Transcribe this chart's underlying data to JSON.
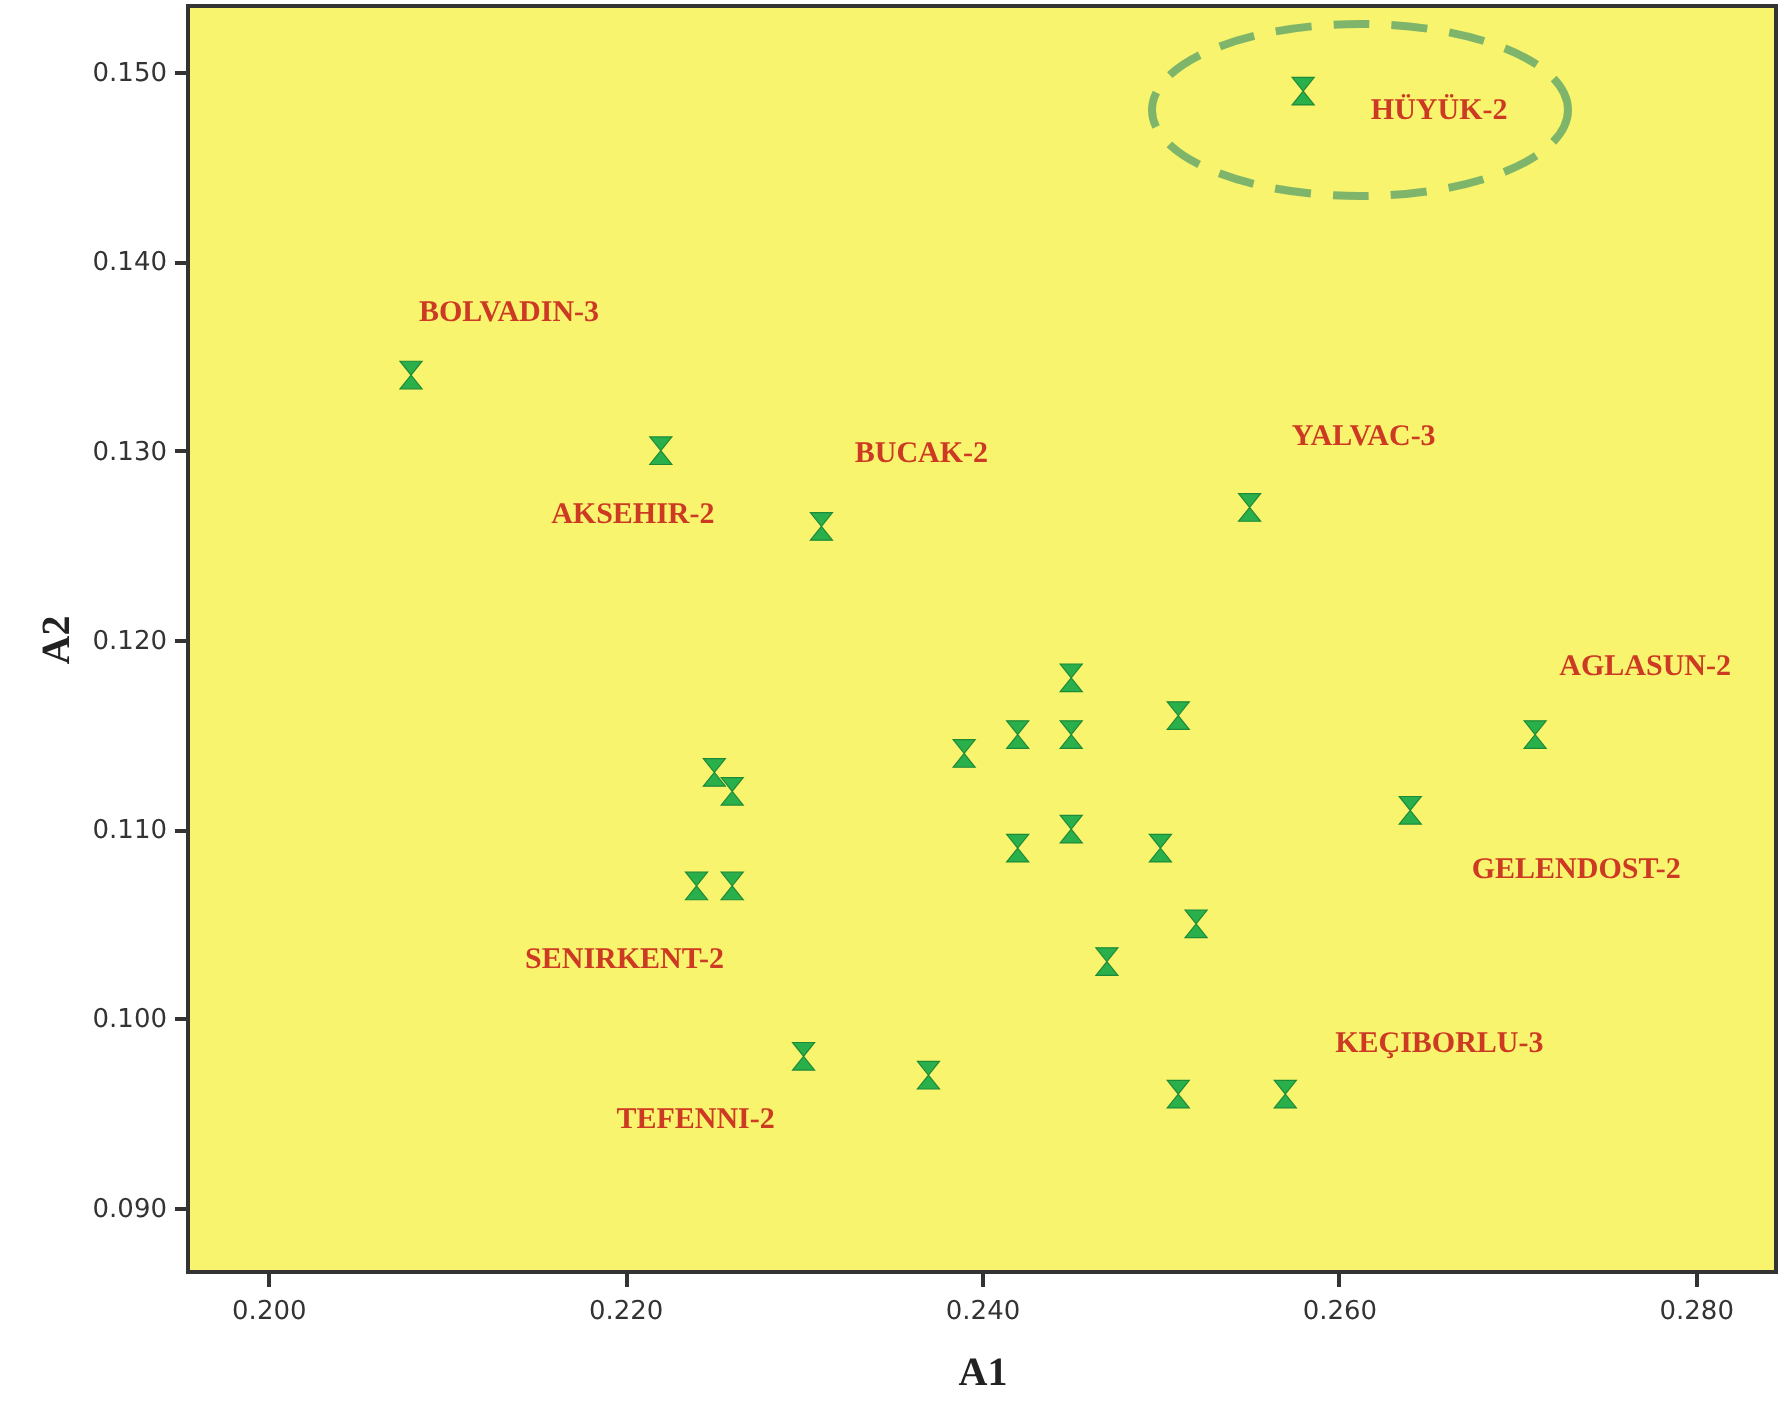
{
  "chart_data": {
    "type": "scatter",
    "xlabel": "A1",
    "ylabel": "A2",
    "color": "#2ab04a",
    "x": [
      0.258,
      0.208,
      0.222,
      0.231,
      0.255,
      0.271,
      0.264,
      0.224,
      0.23,
      0.257,
      0.226,
      0.225,
      0.226,
      0.237,
      0.239,
      0.242,
      0.245,
      0.245,
      0.251,
      0.242,
      0.245,
      0.25,
      0.252,
      0.247,
      0.251
    ],
    "values": [
      0.149,
      0.134,
      0.13,
      0.126,
      0.127,
      0.115,
      0.111,
      0.107,
      0.098,
      0.096,
      0.107,
      0.113,
      0.112,
      0.097,
      0.114,
      0.115,
      0.115,
      0.118,
      0.116,
      0.109,
      0.11,
      0.109,
      0.105,
      0.103,
      0.096
    ],
    "annotations": [
      {
        "text": "HÜYÜK-2",
        "x": 0.258,
        "y": 0.149
      },
      {
        "text": "BOLVADIN-3",
        "x": 0.208,
        "y": 0.134
      },
      {
        "text": "AKSEHIR-2",
        "x": 0.222,
        "y": 0.13
      },
      {
        "text": "BUCAK-2",
        "x": 0.231,
        "y": 0.126
      },
      {
        "text": "YALVAC-3",
        "x": 0.255,
        "y": 0.127
      },
      {
        "text": "AGLASUN-2",
        "x": 0.271,
        "y": 0.115
      },
      {
        "text": "GELENDOST-2",
        "x": 0.264,
        "y": 0.111
      },
      {
        "text": "SENIRKENT-2",
        "x": 0.224,
        "y": 0.107
      },
      {
        "text": "TEFENNI-2",
        "x": 0.23,
        "y": 0.098
      },
      {
        "text": "KEÇIBORLU-3",
        "x": 0.257,
        "y": 0.096
      }
    ],
    "xlim": [
      0.1955,
      0.2845
    ],
    "xticks": [
      {
        "value": 0.2,
        "label": "0.200"
      },
      {
        "value": 0.22,
        "label": "0.220"
      },
      {
        "value": 0.24,
        "label": "0.240"
      },
      {
        "value": 0.26,
        "label": "0.260"
      },
      {
        "value": 0.28,
        "label": "0.280"
      }
    ],
    "ylim": [
      0.0866,
      0.1535
    ],
    "yticks": [
      {
        "value": 0.09,
        "label": "0.090"
      },
      {
        "value": 0.1,
        "label": "0.100"
      },
      {
        "value": 0.11,
        "label": "0.110"
      },
      {
        "value": 0.12,
        "label": "0.120"
      },
      {
        "value": 0.13,
        "label": "0.130"
      },
      {
        "value": 0.14,
        "label": "0.140"
      },
      {
        "value": 0.15,
        "label": "0.150"
      }
    ]
  }
}
